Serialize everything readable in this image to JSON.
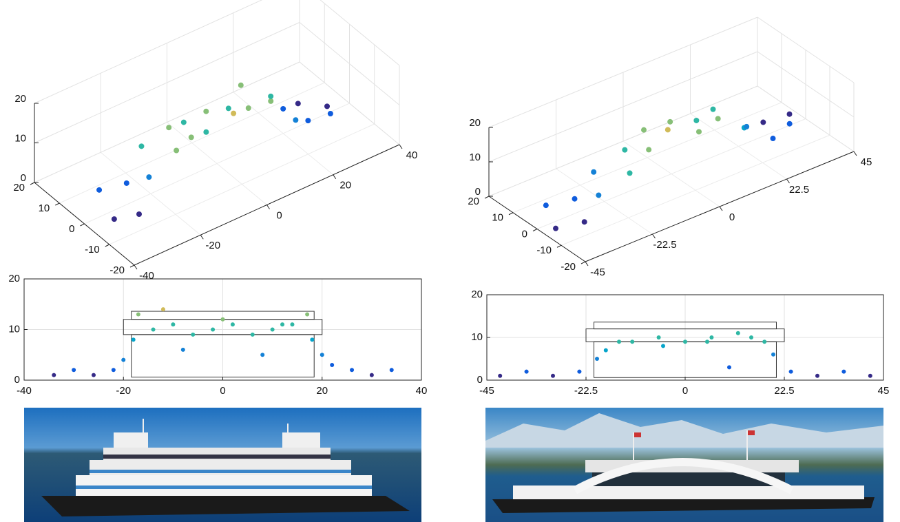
{
  "chart_data": [
    {
      "type": "scatter3d",
      "x": [
        -34,
        -31,
        -28,
        -25,
        -22,
        -19,
        -16,
        -13,
        -10,
        -7,
        -4,
        -1,
        2,
        5,
        8,
        11,
        14,
        17,
        20,
        23,
        26,
        29,
        32,
        34
      ],
      "y": [
        -4,
        6,
        -6,
        3,
        -2,
        5,
        -5,
        2,
        -3,
        4,
        -1,
        3,
        -4,
        2,
        -2,
        5,
        -3,
        1,
        -5,
        4,
        -2,
        6,
        -3,
        1
      ],
      "z": [
        1,
        2,
        1,
        3,
        6,
        9,
        12,
        13,
        12,
        11,
        10,
        12,
        14,
        11,
        12,
        13,
        12,
        10,
        6,
        3,
        2,
        1,
        2,
        1
      ],
      "xlim": [
        -40,
        40
      ],
      "ylim": [
        -20,
        20
      ],
      "zlim": [
        0,
        20
      ],
      "xticks": [
        -40,
        -20,
        0,
        20,
        40
      ],
      "yticks": [
        -20,
        -10,
        0,
        10,
        20
      ],
      "zticks": [
        0,
        10,
        20
      ],
      "grid": true,
      "colormap": [
        "#352a87",
        "#0f5cdd",
        "#1481d6",
        "#06a4ca",
        "#2eb7a4",
        "#87bf77",
        "#d1bb59",
        "#fec832",
        "#f9fb0e"
      ]
    },
    {
      "type": "scatter3d",
      "x": [
        -42,
        -38,
        -34,
        -30,
        -26,
        -22,
        -18,
        -14,
        -10,
        -6,
        -2,
        2,
        6,
        10,
        14,
        18,
        22,
        26,
        30,
        34,
        38,
        42
      ],
      "y": [
        -4,
        5,
        -6,
        3,
        -2,
        5,
        -5,
        2,
        -3,
        4,
        -1,
        3,
        -4,
        2,
        -2,
        5,
        -3,
        1,
        -5,
        4,
        -2,
        3
      ],
      "z": [
        1,
        2,
        1,
        2,
        4,
        6,
        9,
        11,
        12,
        13,
        14,
        13,
        12,
        11,
        12,
        10,
        7,
        4,
        2,
        1,
        2,
        1
      ],
      "xlim": [
        -45,
        45
      ],
      "ylim": [
        -20,
        20
      ],
      "zlim": [
        0,
        20
      ],
      "xticks": [
        -45,
        -22.5,
        0,
        22.5,
        45
      ],
      "yticks": [
        -20,
        -10,
        0,
        10,
        20
      ],
      "zticks": [
        0,
        10,
        20
      ],
      "grid": true,
      "colormap": [
        "#352a87",
        "#0f5cdd",
        "#1481d6",
        "#06a4ca",
        "#2eb7a4",
        "#87bf77",
        "#d1bb59",
        "#f9a72b",
        "#f98c0a"
      ]
    },
    {
      "type": "scatter",
      "x": [
        -34,
        -30,
        -26,
        -22,
        -18,
        -14,
        -10,
        -6,
        -2,
        2,
        6,
        10,
        14,
        18,
        22,
        26,
        30,
        34,
        -17,
        -12,
        0,
        12,
        17,
        -8,
        8,
        -20,
        20
      ],
      "values": [
        1,
        2,
        1,
        2,
        8,
        10,
        11,
        9,
        10,
        11,
        9,
        10,
        11,
        8,
        3,
        2,
        1,
        2,
        13,
        14,
        12,
        11,
        13,
        6,
        5,
        4,
        5
      ],
      "xlim": [
        -40,
        40
      ],
      "ylim": [
        0,
        20
      ],
      "xticks": [
        -40,
        -20,
        0,
        20,
        40
      ],
      "yticks": [
        0,
        10,
        20
      ],
      "grid": true,
      "colormap": [
        "#352a87",
        "#0f5cdd",
        "#1481d6",
        "#06a4ca",
        "#2eb7a4",
        "#87bf77",
        "#d1bb59",
        "#fec832",
        "#f9fb0e"
      ]
    },
    {
      "type": "scatter",
      "x": [
        -42,
        -36,
        -30,
        -24,
        -18,
        -12,
        -6,
        0,
        6,
        12,
        18,
        24,
        30,
        36,
        42,
        -15,
        -5,
        5,
        15,
        -20,
        20,
        10
      ],
      "values": [
        1,
        2,
        1,
        2,
        7,
        9,
        10,
        9,
        10,
        11,
        9,
        2,
        1,
        2,
        1,
        9,
        8,
        9,
        10,
        5,
        6,
        3
      ],
      "xlim": [
        -45,
        45
      ],
      "ylim": [
        0,
        20
      ],
      "xticks": [
        -45,
        -22.5,
        0,
        22.5,
        45
      ],
      "yticks": [
        0,
        10,
        20
      ],
      "grid": true,
      "colormap": [
        "#352a87",
        "#0f5cdd",
        "#1481d6",
        "#06a4ca",
        "#2eb7a4",
        "#87bf77",
        "#d1bb59",
        "#f9a72b",
        "#f98c0a"
      ]
    }
  ]
}
